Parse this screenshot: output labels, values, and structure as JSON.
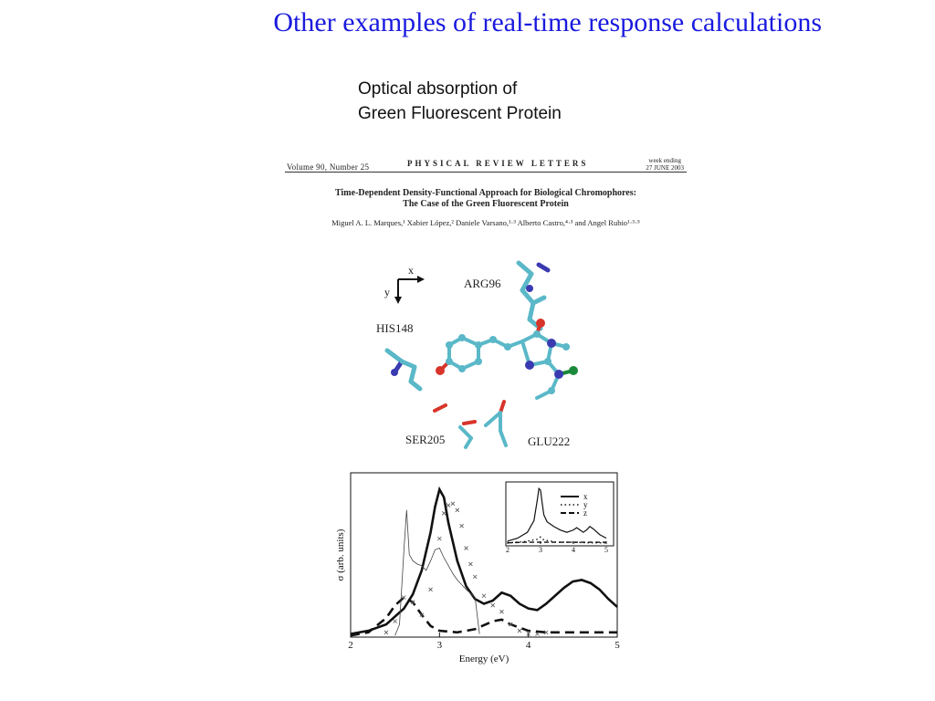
{
  "slide": {
    "title": "Other examples of real-time response calculations",
    "subtitle_line1": "Optical absorption of",
    "subtitle_line2": "Green Fluorescent Protein"
  },
  "paper": {
    "volume": "Volume 90, Number 25",
    "journal": "PHYSICAL   REVIEW   LETTERS",
    "week_ending": "week ending",
    "date": "27 JUNE 2003",
    "title_line1": "Time-Dependent Density-Functional Approach for Biological Chromophores:",
    "title_line2": "The Case of the Green Fluorescent Protein",
    "authors": "Miguel A. L. Marques,¹ Xabier López,² Daniele Varsano,¹·³ Alberto Castro,⁴·³ and Angel Rubio¹·³·⁵"
  },
  "molecule": {
    "axis_x": "x",
    "axis_y": "y",
    "residues": [
      "ARG96",
      "HIS148",
      "SER205",
      "GLU222"
    ],
    "colors": {
      "carbon": "#5ab8c8",
      "oxygen": "#d8342a",
      "nitrogen": "#3a3ab0",
      "hydrogen": "#f0f0f0",
      "chlorine": "#1a8a3a"
    }
  },
  "chart_data": {
    "type": "line",
    "xlabel": "Energy (eV)",
    "ylabel": "σ (arb. units)",
    "xlim": [
      2,
      5
    ],
    "xticks": [
      "2",
      "3",
      "4",
      "5"
    ],
    "series": [
      {
        "style": "thick-solid",
        "x": [
          2.0,
          2.2,
          2.4,
          2.6,
          2.7,
          2.8,
          2.9,
          2.95,
          3.0,
          3.05,
          3.1,
          3.2,
          3.3,
          3.4,
          3.5,
          3.6,
          3.7,
          3.8,
          3.9,
          4.0,
          4.1,
          4.2,
          4.3,
          4.4,
          4.5,
          4.6,
          4.7,
          4.8,
          4.9,
          5.0
        ],
        "y": [
          0.02,
          0.04,
          0.08,
          0.18,
          0.27,
          0.42,
          0.66,
          0.82,
          0.93,
          0.88,
          0.72,
          0.48,
          0.32,
          0.24,
          0.21,
          0.23,
          0.28,
          0.26,
          0.21,
          0.18,
          0.17,
          0.21,
          0.26,
          0.31,
          0.35,
          0.36,
          0.34,
          0.3,
          0.24,
          0.19
        ]
      },
      {
        "style": "dashed",
        "x": [
          2.0,
          2.2,
          2.4,
          2.5,
          2.6,
          2.7,
          2.8,
          2.9,
          3.0,
          3.2,
          3.4,
          3.6,
          3.7,
          3.8,
          4.0,
          4.2,
          4.4,
          4.6,
          4.8,
          5.0
        ],
        "y": [
          0.01,
          0.03,
          0.12,
          0.2,
          0.25,
          0.22,
          0.14,
          0.07,
          0.04,
          0.03,
          0.05,
          0.1,
          0.11,
          0.08,
          0.04,
          0.03,
          0.03,
          0.03,
          0.03,
          0.03
        ]
      },
      {
        "style": "crosses",
        "x": [
          2.4,
          2.5,
          2.6,
          2.7,
          2.8,
          2.9,
          3.0,
          3.05,
          3.1,
          3.15,
          3.2,
          3.25,
          3.3,
          3.35,
          3.4,
          3.5,
          3.6,
          3.7,
          3.8,
          3.9,
          4.0,
          4.1,
          4.2
        ],
        "y": [
          0.03,
          0.1,
          0.25,
          0.22,
          0.14,
          0.3,
          0.62,
          0.78,
          0.83,
          0.84,
          0.8,
          0.7,
          0.56,
          0.46,
          0.38,
          0.26,
          0.2,
          0.16,
          0.08,
          0.04,
          0.02,
          0.02,
          0.03
        ]
      },
      {
        "style": "thin-solid",
        "x": [
          2.5,
          2.55,
          2.6,
          2.63,
          2.66,
          2.7,
          2.75,
          2.8,
          2.85,
          2.9,
          2.95,
          3.0,
          3.05,
          3.1,
          3.15,
          3.2,
          3.3,
          3.4,
          3.45
        ],
        "y": [
          0.01,
          0.08,
          0.55,
          0.8,
          0.52,
          0.48,
          0.46,
          0.45,
          0.42,
          0.48,
          0.55,
          0.56,
          0.5,
          0.45,
          0.4,
          0.36,
          0.3,
          0.25,
          0.02
        ]
      }
    ],
    "inset": {
      "xlim": [
        2,
        5
      ],
      "xticks": [
        "2",
        "3",
        "4",
        "5"
      ],
      "legend": [
        "x",
        "y",
        "z"
      ],
      "series": [
        {
          "style": "solid",
          "x": [
            2.0,
            2.3,
            2.6,
            2.8,
            2.9,
            2.95,
            3.0,
            3.05,
            3.1,
            3.2,
            3.4,
            3.6,
            3.8,
            4.0,
            4.1,
            4.2,
            4.3,
            4.4,
            4.5,
            4.6,
            4.8,
            5.0
          ],
          "y": [
            0.05,
            0.1,
            0.2,
            0.4,
            0.75,
            0.95,
            0.92,
            0.7,
            0.5,
            0.38,
            0.3,
            0.24,
            0.2,
            0.24,
            0.28,
            0.24,
            0.2,
            0.24,
            0.3,
            0.26,
            0.16,
            0.1
          ]
        },
        {
          "style": "dotted",
          "x": [
            2.0,
            2.5,
            2.9,
            3.0,
            3.1,
            3.5,
            4.0,
            4.5,
            5.0
          ],
          "y": [
            0.02,
            0.04,
            0.08,
            0.12,
            0.07,
            0.03,
            0.03,
            0.02,
            0.02
          ]
        },
        {
          "style": "dashed",
          "x": [
            2.0,
            2.5,
            3.0,
            3.5,
            4.0,
            4.5,
            5.0
          ],
          "y": [
            0.02,
            0.03,
            0.03,
            0.03,
            0.03,
            0.03,
            0.03
          ]
        }
      ]
    }
  }
}
